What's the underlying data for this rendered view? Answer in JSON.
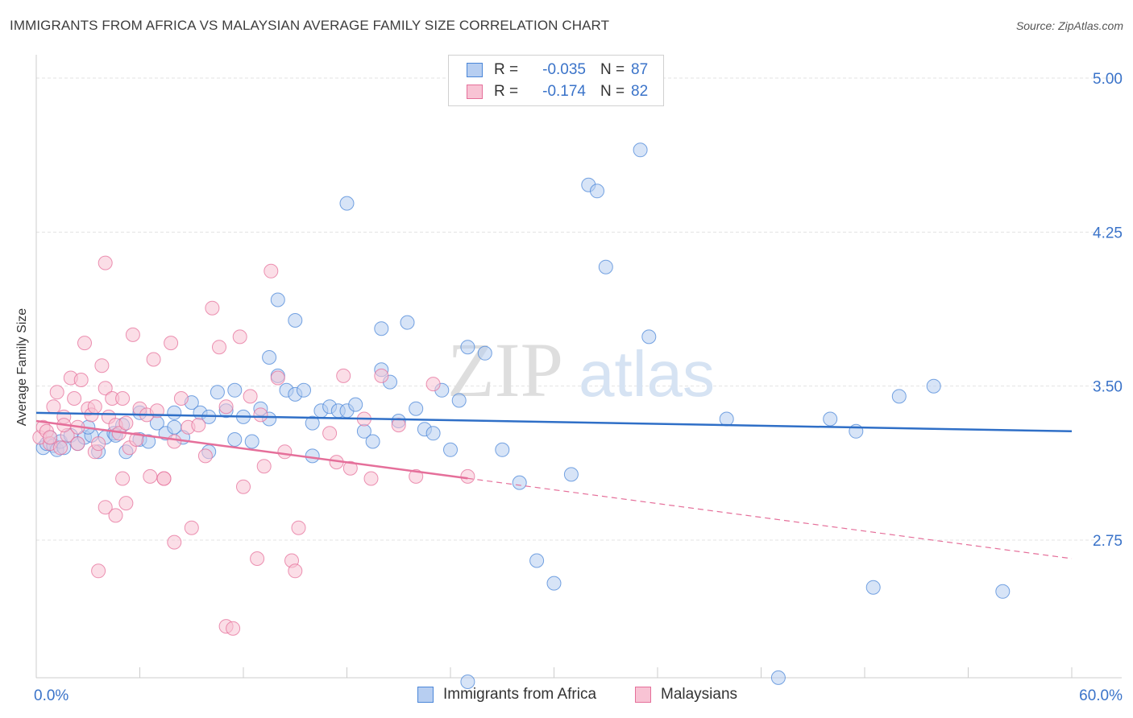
{
  "title": "IMMIGRANTS FROM AFRICA VS MALAYSIAN AVERAGE FAMILY SIZE CORRELATION CHART",
  "source": "Source: ZipAtlas.com",
  "watermark": {
    "part1": "ZIP",
    "part2": "atlas"
  },
  "legend": {
    "rows": [
      {
        "r_label": "R =",
        "r_value": "-0.035",
        "n_label": "N =",
        "n_value": "87",
        "color": "#4a86d8",
        "fill": "#b7cef1"
      },
      {
        "r_label": "R =",
        "r_value": "-0.174",
        "n_label": "N =",
        "n_value": "82",
        "color": "#e56f9a",
        "fill": "#f8c3d4"
      }
    ]
  },
  "bottom_legend": [
    {
      "label": "Immigrants from Africa",
      "color": "#4a86d8",
      "fill": "#b7cef1"
    },
    {
      "label": "Malaysians",
      "color": "#e56f9a",
      "fill": "#f8c3d4"
    }
  ],
  "chart_data": {
    "type": "scatter",
    "title": "IMMIGRANTS FROM AFRICA VS MALAYSIAN AVERAGE FAMILY SIZE CORRELATION CHART",
    "xlabel": "",
    "ylabel": "Average Family Size",
    "xlim": [
      0,
      60
    ],
    "ylim": [
      2.0,
      5.1
    ],
    "x_tick_labels": [
      "0.0%",
      "60.0%"
    ],
    "y_ticks": [
      2.75,
      3.5,
      4.25,
      5.0
    ],
    "y_tick_labels": [
      "2.75",
      "3.50",
      "4.25",
      "5.00"
    ],
    "grid": true,
    "series": [
      {
        "name": "Immigrants from Africa",
        "color": "#4a86d8",
        "fill": "#b7cef1",
        "trend": {
          "x": [
            0,
            60
          ],
          "y": [
            3.37,
            3.28
          ],
          "dashed_from": null
        },
        "points": [
          [
            0.4,
            3.2
          ],
          [
            0.6,
            3.22
          ],
          [
            0.8,
            3.25
          ],
          [
            1.0,
            3.21
          ],
          [
            1.2,
            3.19
          ],
          [
            1.4,
            3.23
          ],
          [
            1.6,
            3.2
          ],
          [
            2.0,
            3.26
          ],
          [
            2.4,
            3.22
          ],
          [
            2.8,
            3.25
          ],
          [
            3.2,
            3.26
          ],
          [
            3.6,
            3.18
          ],
          [
            4.0,
            3.25
          ],
          [
            4.5,
            3.27
          ],
          [
            5.0,
            3.31
          ],
          [
            4.6,
            3.26
          ],
          [
            5.2,
            3.18
          ],
          [
            6.0,
            3.24
          ],
          [
            6.5,
            3.23
          ],
          [
            7.0,
            3.32
          ],
          [
            7.5,
            3.27
          ],
          [
            8.0,
            3.37
          ],
          [
            8.5,
            3.25
          ],
          [
            9.0,
            3.42
          ],
          [
            9.5,
            3.37
          ],
          [
            10.0,
            3.18
          ],
          [
            10.5,
            3.47
          ],
          [
            11.0,
            3.38
          ],
          [
            11.5,
            3.24
          ],
          [
            12.0,
            3.35
          ],
          [
            12.5,
            3.23
          ],
          [
            13.0,
            3.39
          ],
          [
            13.5,
            3.64
          ],
          [
            14.0,
            3.55
          ],
          [
            14.5,
            3.48
          ],
          [
            15.0,
            3.46
          ],
          [
            15.5,
            3.48
          ],
          [
            16.0,
            3.16
          ],
          [
            16.5,
            3.38
          ],
          [
            17.0,
            3.4
          ],
          [
            17.5,
            3.38
          ],
          [
            18.0,
            3.38
          ],
          [
            18.5,
            3.41
          ],
          [
            19.0,
            3.28
          ],
          [
            19.5,
            3.23
          ],
          [
            20.0,
            3.58
          ],
          [
            20.5,
            3.52
          ],
          [
            21.0,
            3.33
          ],
          [
            21.5,
            3.81
          ],
          [
            22.0,
            3.39
          ],
          [
            22.5,
            3.29
          ],
          [
            23.0,
            3.27
          ],
          [
            23.5,
            3.48
          ],
          [
            24.0,
            3.19
          ],
          [
            24.5,
            3.43
          ],
          [
            25.0,
            3.69
          ],
          [
            26.0,
            3.66
          ],
          [
            27.0,
            3.19
          ],
          [
            28.0,
            3.03
          ],
          [
            29.0,
            2.65
          ],
          [
            30.0,
            2.54
          ],
          [
            31.0,
            3.07
          ],
          [
            32.0,
            4.48
          ],
          [
            32.5,
            4.45
          ],
          [
            33.0,
            4.08
          ],
          [
            35.0,
            4.65
          ],
          [
            35.5,
            3.74
          ],
          [
            40.0,
            3.34
          ],
          [
            43.0,
            2.08
          ],
          [
            46.0,
            3.34
          ],
          [
            47.5,
            3.28
          ],
          [
            56.0,
            2.5
          ],
          [
            48.5,
            2.52
          ],
          [
            50.0,
            3.45
          ],
          [
            52.0,
            3.5
          ],
          [
            25.0,
            2.06
          ],
          [
            14.0,
            3.92
          ],
          [
            15.0,
            3.82
          ],
          [
            18.0,
            4.39
          ],
          [
            20.0,
            3.78
          ],
          [
            11.5,
            3.48
          ],
          [
            10.0,
            3.35
          ],
          [
            13.5,
            3.34
          ],
          [
            3.0,
            3.3
          ],
          [
            6.0,
            3.37
          ],
          [
            8.0,
            3.3
          ],
          [
            16.0,
            3.32
          ]
        ]
      },
      {
        "name": "Malaysians",
        "color": "#e56f9a",
        "fill": "#f8c3d4",
        "trend": {
          "x": [
            0,
            60
          ],
          "y": [
            3.33,
            2.66
          ],
          "dashed_from": 25
        },
        "points": [
          [
            0.2,
            3.25
          ],
          [
            0.4,
            3.3
          ],
          [
            0.6,
            3.28
          ],
          [
            0.8,
            3.22
          ],
          [
            1.0,
            3.4
          ],
          [
            1.2,
            3.47
          ],
          [
            1.4,
            3.2
          ],
          [
            1.6,
            3.35
          ],
          [
            1.8,
            3.26
          ],
          [
            2.0,
            3.54
          ],
          [
            2.2,
            3.44
          ],
          [
            2.4,
            3.3
          ],
          [
            2.6,
            3.53
          ],
          [
            2.8,
            3.71
          ],
          [
            3.0,
            3.39
          ],
          [
            3.2,
            3.36
          ],
          [
            3.4,
            3.18
          ],
          [
            3.6,
            3.22
          ],
          [
            3.8,
            3.6
          ],
          [
            4.0,
            3.49
          ],
          [
            4.2,
            3.35
          ],
          [
            4.4,
            3.44
          ],
          [
            4.6,
            3.31
          ],
          [
            4.8,
            3.27
          ],
          [
            5.0,
            3.44
          ],
          [
            5.2,
            3.32
          ],
          [
            5.4,
            3.2
          ],
          [
            5.6,
            3.75
          ],
          [
            5.8,
            3.24
          ],
          [
            6.0,
            3.39
          ],
          [
            6.4,
            3.36
          ],
          [
            6.8,
            3.63
          ],
          [
            7.0,
            3.38
          ],
          [
            7.4,
            3.05
          ],
          [
            7.8,
            3.71
          ],
          [
            8.0,
            3.23
          ],
          [
            8.4,
            3.44
          ],
          [
            8.8,
            3.3
          ],
          [
            9.0,
            2.81
          ],
          [
            9.4,
            3.31
          ],
          [
            9.8,
            3.16
          ],
          [
            10.2,
            3.88
          ],
          [
            10.6,
            3.69
          ],
          [
            11.0,
            2.33
          ],
          [
            11.4,
            2.32
          ],
          [
            11.8,
            3.74
          ],
          [
            12.0,
            3.01
          ],
          [
            12.4,
            3.45
          ],
          [
            12.8,
            2.66
          ],
          [
            13.2,
            3.11
          ],
          [
            13.6,
            4.06
          ],
          [
            14.0,
            3.54
          ],
          [
            14.4,
            3.18
          ],
          [
            14.8,
            2.65
          ],
          [
            15.2,
            2.81
          ],
          [
            17.0,
            3.27
          ],
          [
            17.4,
            3.13
          ],
          [
            17.8,
            3.55
          ],
          [
            18.2,
            3.1
          ],
          [
            19.0,
            3.34
          ],
          [
            19.4,
            3.05
          ],
          [
            20.0,
            3.55
          ],
          [
            21.0,
            3.31
          ],
          [
            22.0,
            3.06
          ],
          [
            23.0,
            3.51
          ],
          [
            25.0,
            3.06
          ],
          [
            5.0,
            3.05
          ],
          [
            5.2,
            2.93
          ],
          [
            4.0,
            2.91
          ],
          [
            4.6,
            2.87
          ],
          [
            3.6,
            2.6
          ],
          [
            8.0,
            2.74
          ],
          [
            6.6,
            3.06
          ],
          [
            7.4,
            3.05
          ],
          [
            3.4,
            3.4
          ],
          [
            2.4,
            3.22
          ],
          [
            1.6,
            3.31
          ],
          [
            0.8,
            3.25
          ],
          [
            4.0,
            4.1
          ],
          [
            15.0,
            2.6
          ],
          [
            11.0,
            3.4
          ],
          [
            13.0,
            3.36
          ]
        ]
      }
    ]
  }
}
